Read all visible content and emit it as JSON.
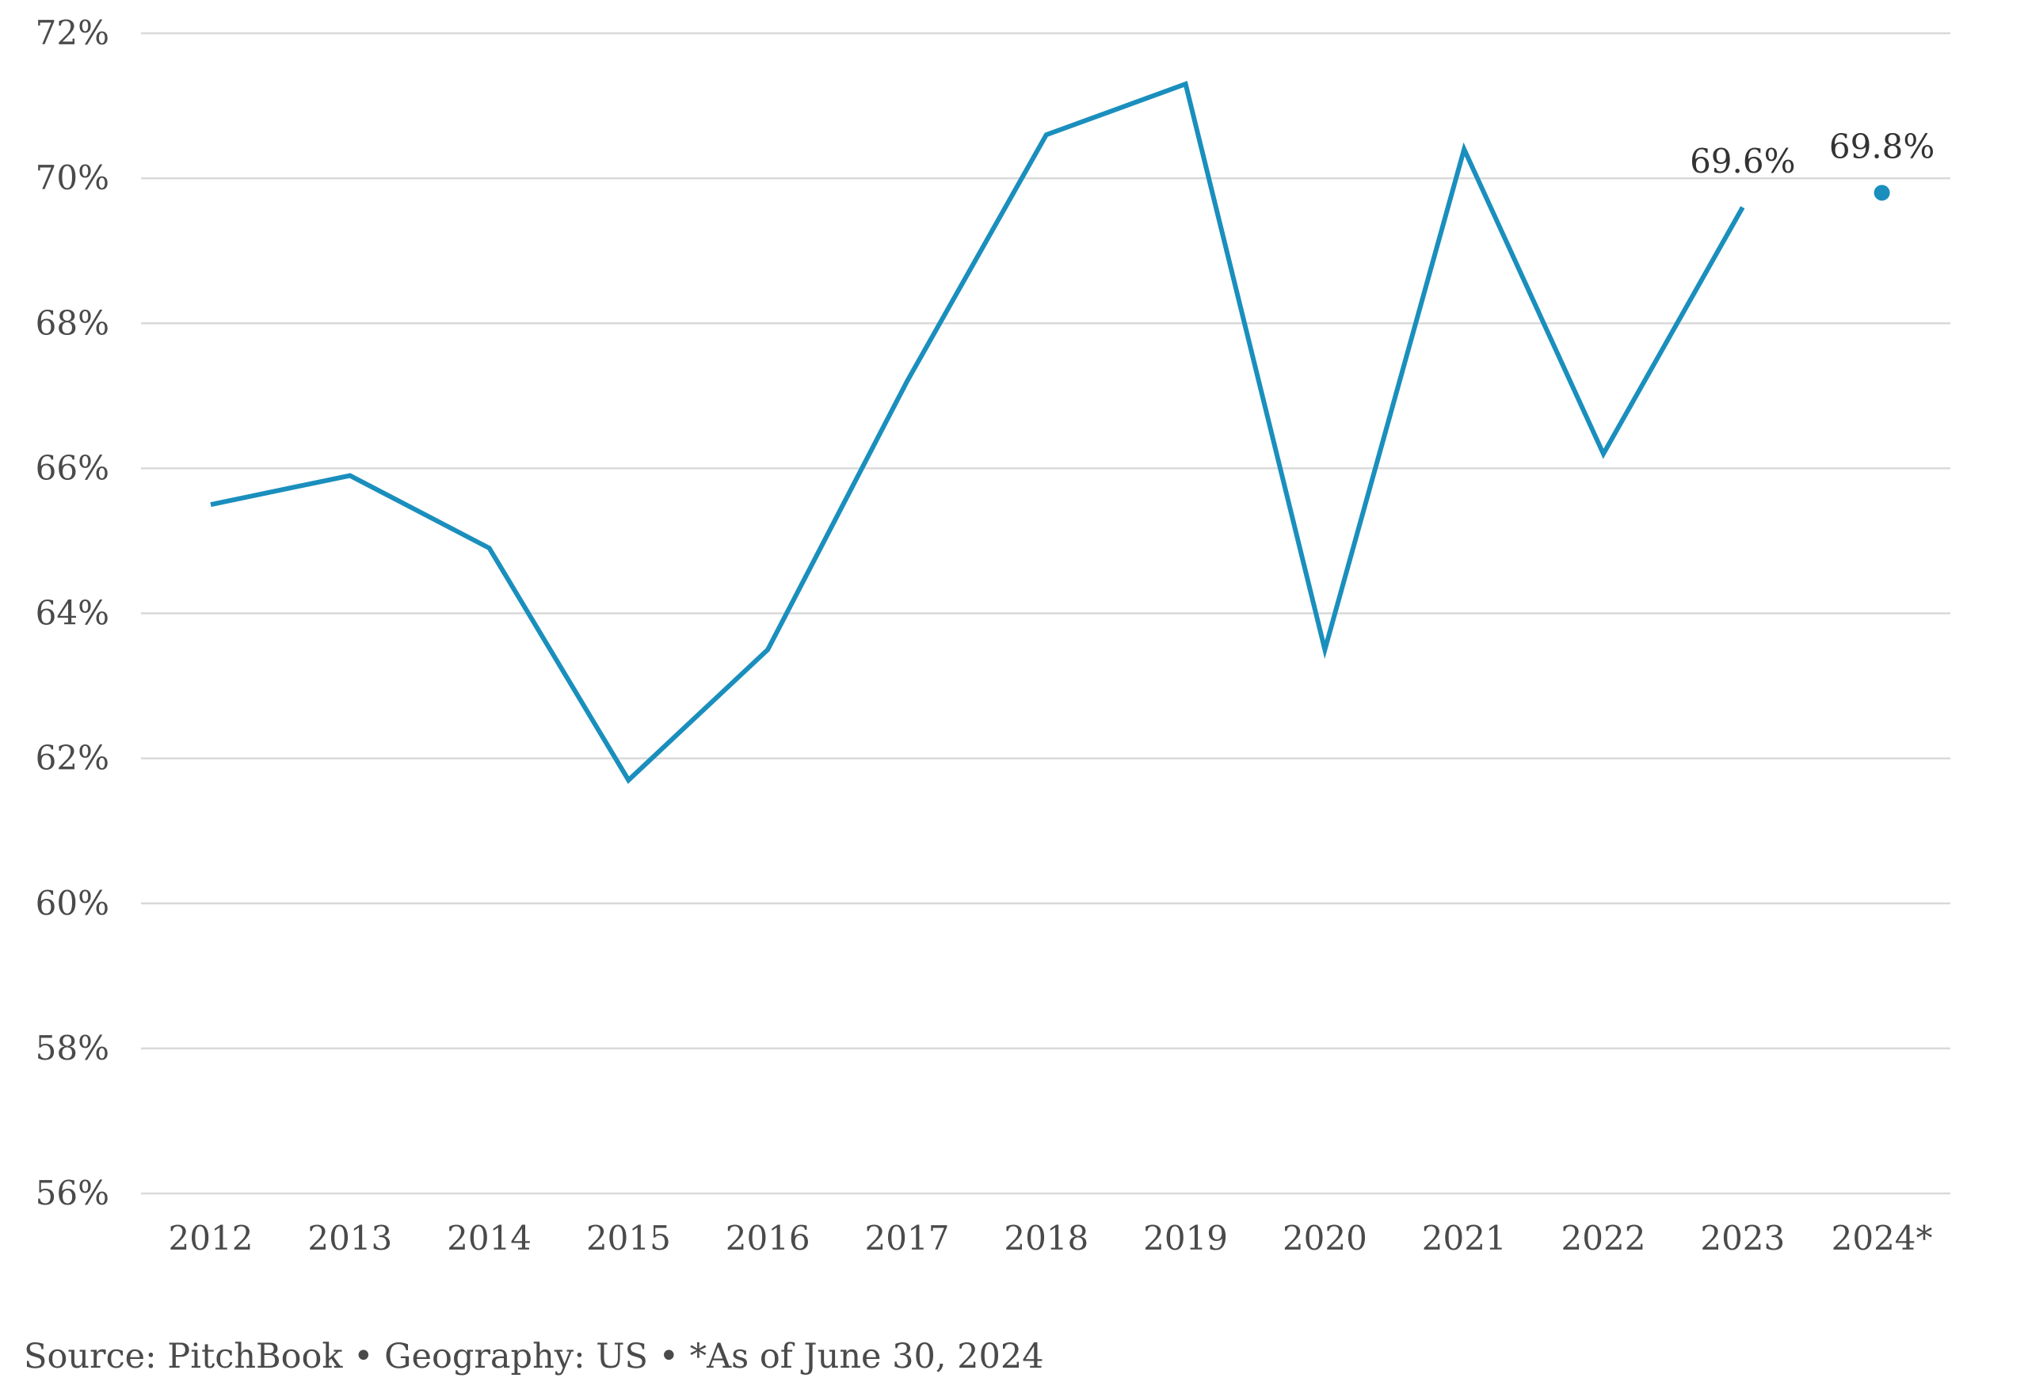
{
  "chart_data": {
    "type": "line",
    "title": "",
    "xlabel": "",
    "ylabel": "",
    "categories": [
      "2012",
      "2013",
      "2014",
      "2015",
      "2016",
      "2017",
      "2018",
      "2019",
      "2020",
      "2021",
      "2022",
      "2023",
      "2024*"
    ],
    "series": [
      {
        "values": [
          65.5,
          65.9,
          64.9,
          61.7,
          63.5,
          67.2,
          70.6,
          71.3,
          63.5,
          70.4,
          66.2,
          69.6,
          69.8
        ],
        "line_through": 12,
        "color": "#1a8fbd"
      }
    ],
    "ylim": [
      56,
      72
    ],
    "yticks": [
      56,
      58,
      60,
      62,
      64,
      66,
      68,
      70,
      72
    ],
    "ytick_labels": [
      "56%",
      "58%",
      "60%",
      "62%",
      "64%",
      "66%",
      "68%",
      "70%",
      "72%"
    ],
    "data_labels": [
      {
        "category": "2023",
        "text": "69.6%"
      },
      {
        "category": "2024*",
        "text": "69.8%"
      }
    ],
    "grid": "horizontal",
    "legend": "none"
  },
  "source_note": "Source: PitchBook • Geography: US • *As of June 30, 2024"
}
